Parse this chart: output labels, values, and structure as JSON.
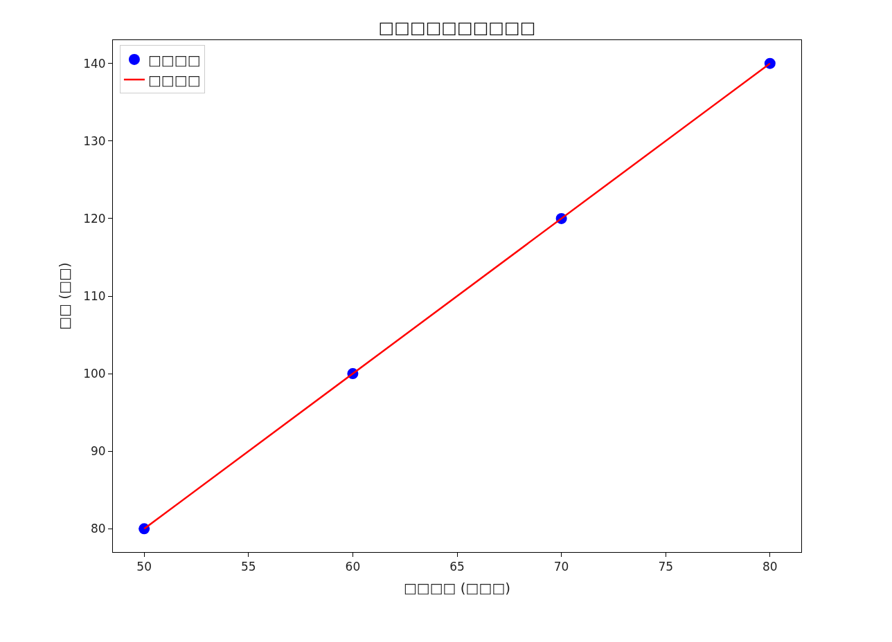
{
  "chart_data": {
    "type": "scatter",
    "title": "□□□□□□□□□□",
    "xlabel": "□□□□ (□□□)",
    "ylabel": "□□ (□□)",
    "x": [
      50,
      60,
      70,
      80
    ],
    "series": [
      {
        "name": "□□□□",
        "color": "#0000ff",
        "marker": "circle",
        "values": [
          80,
          100,
          120,
          140
        ]
      },
      {
        "name": "□□□□",
        "type": "line",
        "color": "#ff0000",
        "x": [
          50,
          80
        ],
        "values": [
          80,
          140
        ]
      }
    ],
    "xlim": [
      48.5,
      81.5
    ],
    "xticks": [
      50,
      55,
      60,
      65,
      70,
      75,
      80
    ],
    "ylim": [
      77,
      143
    ],
    "yticks": [
      80,
      90,
      100,
      110,
      120,
      130,
      140
    ],
    "grid": false,
    "legend": "top left"
  }
}
